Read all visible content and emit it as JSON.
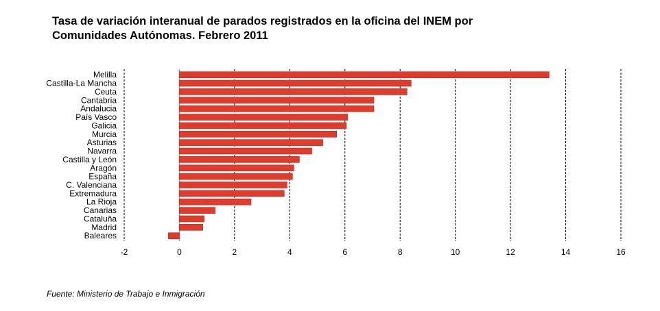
{
  "title_line1": "Tasa de variación interanual de parados registrados en la oficina del INEM por",
  "title_line2": "Comunidades Autónomas. Febrero 2011",
  "source": "Fuente: Ministerio de Trabajo e Inmigración",
  "chart_data": {
    "type": "bar",
    "orientation": "horizontal",
    "categories": [
      "Melilla",
      "Castilla-La Mancha",
      "Ceuta",
      "Cantabria",
      "Andalucia",
      "País Vasco",
      "Galicia",
      "Murcia",
      "Asturias",
      "Navarra",
      "Castilla y León",
      "Aragón",
      "España",
      "C. Valenciana",
      "Extremadura",
      "La Rioja",
      "Canarias",
      "Cataluña",
      "Madrid",
      "Baleares"
    ],
    "values": [
      13.4,
      8.4,
      8.25,
      7.05,
      7.05,
      6.1,
      6.05,
      5.7,
      5.2,
      4.8,
      4.35,
      4.15,
      4.1,
      3.9,
      3.8,
      2.6,
      1.3,
      0.9,
      0.85,
      -0.4
    ],
    "xlim": [
      -2,
      16
    ],
    "xticks": [
      "-2",
      "0",
      "2",
      "4",
      "6",
      "8",
      "10",
      "12",
      "14",
      "16"
    ],
    "grid": "vertical dashed",
    "colors": {
      "bar": "#e03c2d",
      "bar_edge": "#b52a1f",
      "grid": "#000000"
    }
  }
}
